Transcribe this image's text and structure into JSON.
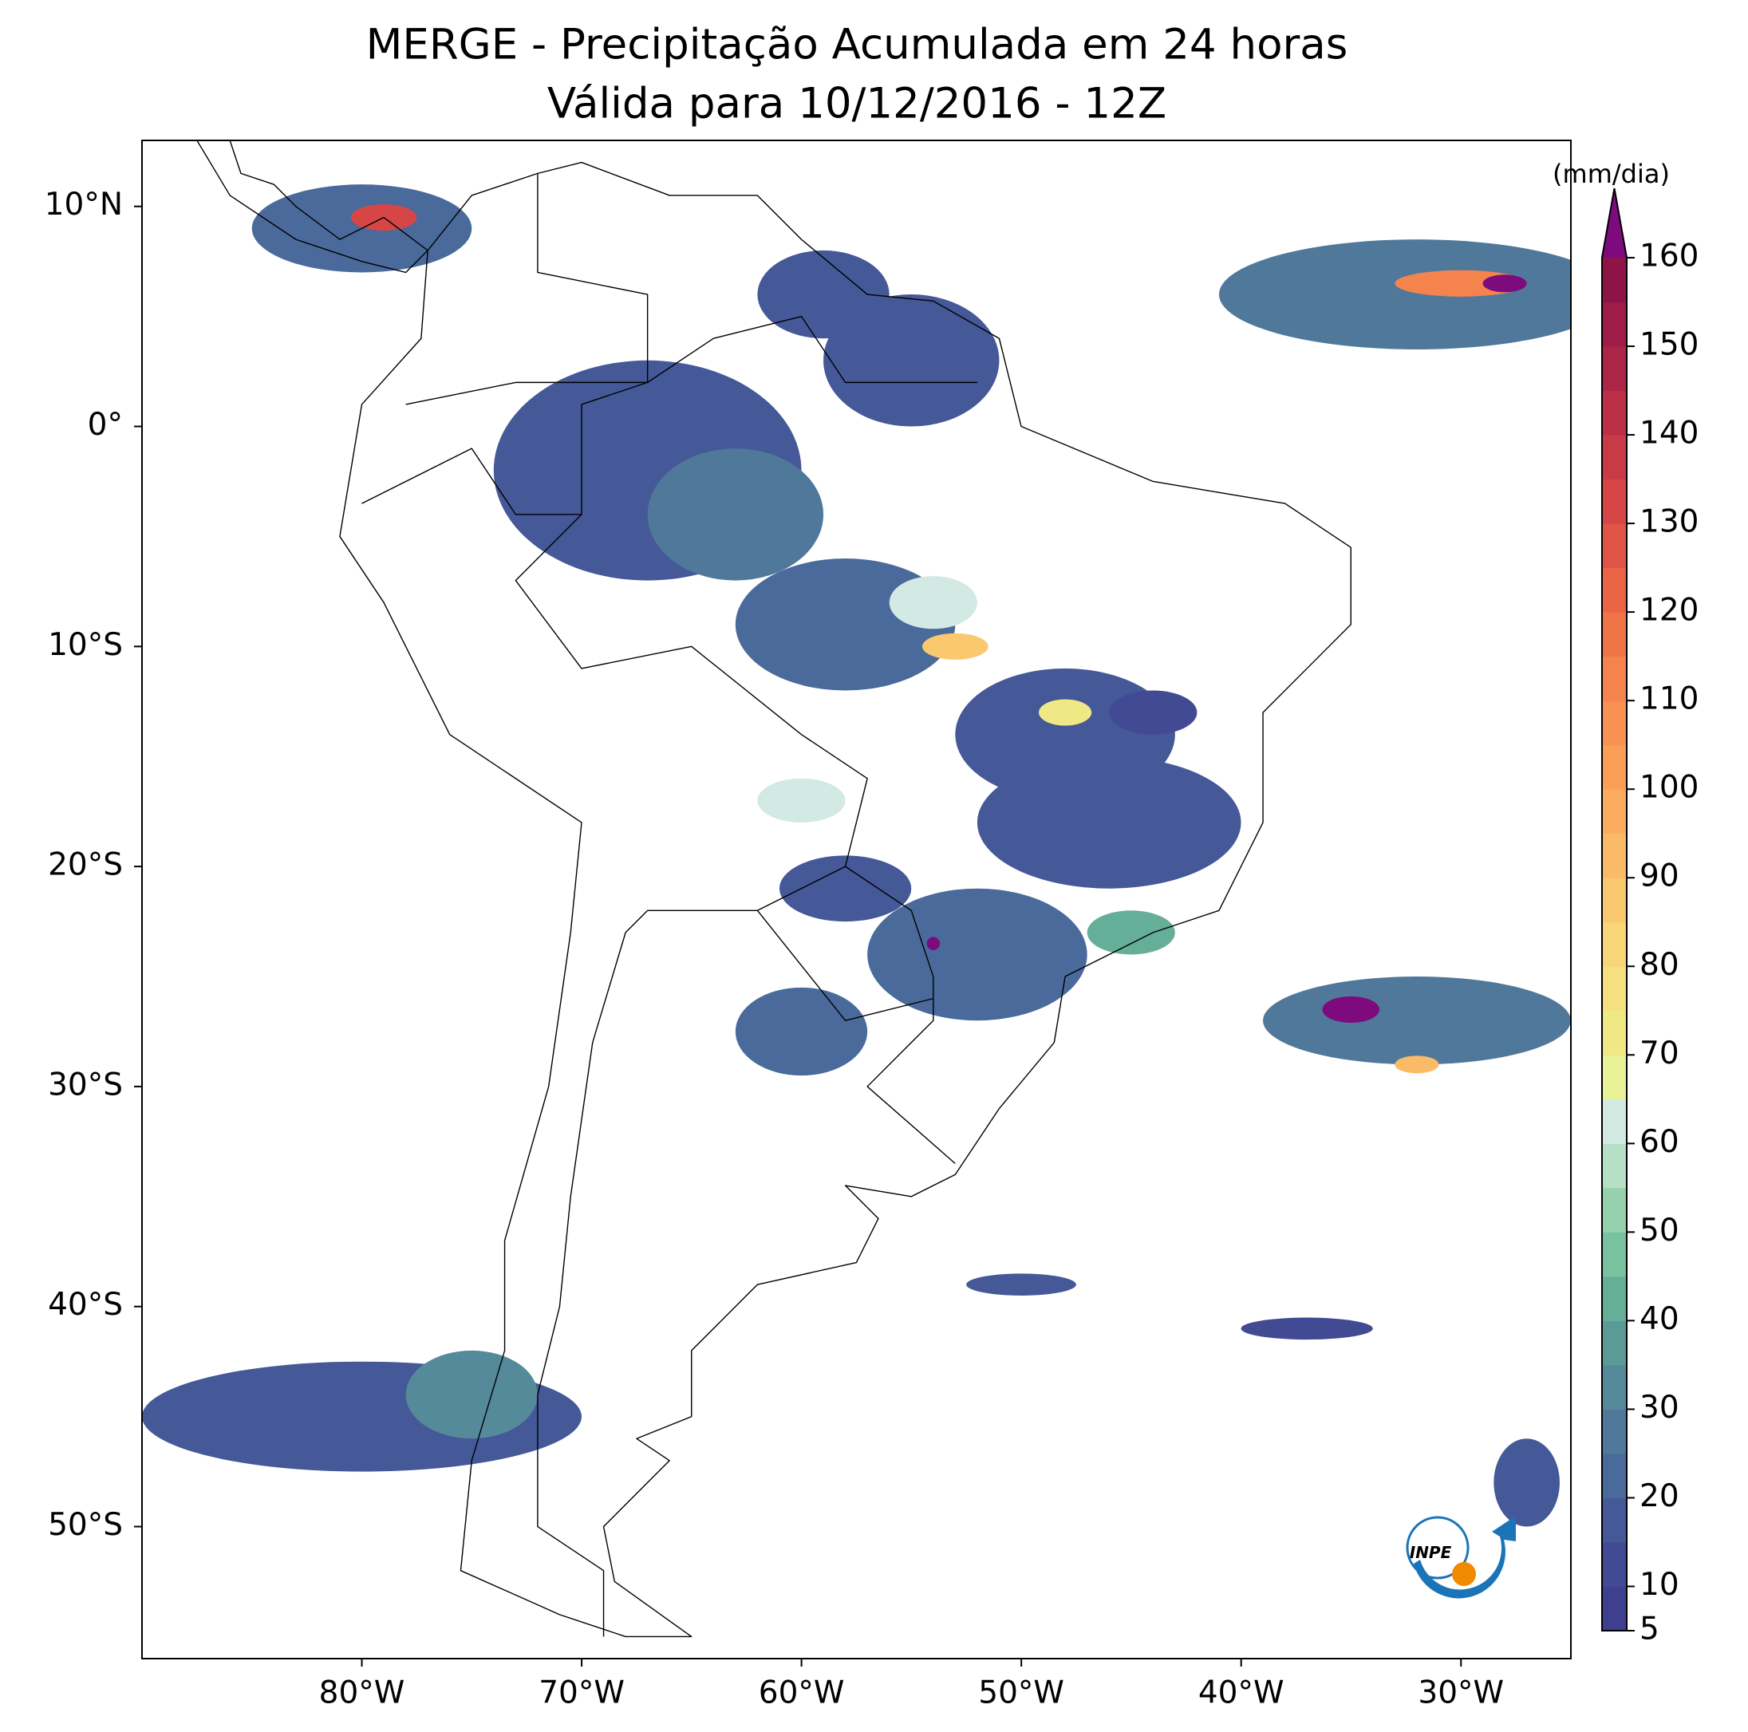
{
  "chart_data": {
    "type": "map",
    "title": [
      "MERGE - Precipitação Acumulada em 24 horas",
      "Válida para 10/12/2016 - 12Z"
    ],
    "xlim": [
      -90,
      -25
    ],
    "ylim": [
      -56,
      13
    ],
    "xticks": [
      {
        "value": -80,
        "label": "80°W"
      },
      {
        "value": -70,
        "label": "70°W"
      },
      {
        "value": -60,
        "label": "60°W"
      },
      {
        "value": -50,
        "label": "50°W"
      },
      {
        "value": -40,
        "label": "40°W"
      },
      {
        "value": -30,
        "label": "30°W"
      }
    ],
    "yticks": [
      {
        "value": 10,
        "label": "10°N"
      },
      {
        "value": 0,
        "label": "0°"
      },
      {
        "value": -10,
        "label": "10°S"
      },
      {
        "value": -20,
        "label": "20°S"
      },
      {
        "value": -30,
        "label": "30°S"
      },
      {
        "value": -40,
        "label": "40°S"
      },
      {
        "value": -50,
        "label": "50°S"
      }
    ],
    "colorbar": {
      "label": "(mm/dia)",
      "levels": [
        5,
        10,
        15,
        20,
        25,
        30,
        35,
        40,
        45,
        50,
        55,
        60,
        65,
        70,
        75,
        80,
        85,
        90,
        95,
        100,
        105,
        110,
        115,
        120,
        125,
        130,
        135,
        140,
        145,
        150,
        155,
        160
      ],
      "ticks": [
        5,
        10,
        20,
        30,
        40,
        50,
        60,
        70,
        80,
        90,
        100,
        110,
        120,
        130,
        140,
        150,
        160
      ],
      "colors": [
        "#3f3f8f",
        "#424a93",
        "#455897",
        "#4a6a9b",
        "#50789b",
        "#548a9a",
        "#5a9b98",
        "#65ae97",
        "#78c29f",
        "#96d1ae",
        "#b6dfc6",
        "#d3e9e3",
        "#e8f297",
        "#f0e884",
        "#f5df7e",
        "#f8d576",
        "#fac86e",
        "#fbba66",
        "#fcac5f",
        "#fb9f57",
        "#f89152",
        "#f4834d",
        "#ef7448",
        "#e96545",
        "#e05545",
        "#d64646",
        "#c93a47",
        "#bb2f47",
        "#ab2546",
        "#9d1c48",
        "#8e1448"
      ],
      "extend_color": "#7d0b7d"
    },
    "rain_cells": [
      {
        "lon": -67,
        "lat": -2,
        "rx": 7,
        "ry": 5,
        "value": 15
      },
      {
        "lon": -63,
        "lat": -4,
        "rx": 4,
        "ry": 3,
        "value": 25
      },
      {
        "lon": -58,
        "lat": -9,
        "rx": 5,
        "ry": 3,
        "value": 20
      },
      {
        "lon": -54,
        "lat": -8,
        "rx": 2,
        "ry": 1.2,
        "value": 60
      },
      {
        "lon": -53,
        "lat": -10,
        "rx": 1.5,
        "ry": 0.6,
        "value": 85
      },
      {
        "lon": -48,
        "lat": -14,
        "rx": 5,
        "ry": 3,
        "value": 15
      },
      {
        "lon": -48,
        "lat": -13,
        "rx": 1.2,
        "ry": 0.6,
        "value": 70
      },
      {
        "lon": -46,
        "lat": -18,
        "rx": 6,
        "ry": 3,
        "value": 18
      },
      {
        "lon": -52,
        "lat": -24,
        "rx": 5,
        "ry": 3,
        "value": 20
      },
      {
        "lon": -58,
        "lat": -21,
        "rx": 3,
        "ry": 1.5,
        "value": 15
      },
      {
        "lon": -54,
        "lat": -23.5,
        "rx": 0.3,
        "ry": 0.3,
        "value": 160
      },
      {
        "lon": -60,
        "lat": -17,
        "rx": 2,
        "ry": 1,
        "value": 60
      },
      {
        "lon": -60,
        "lat": -27.5,
        "rx": 3,
        "ry": 2,
        "value": 20
      },
      {
        "lon": -80,
        "lat": 9,
        "rx": 5,
        "ry": 2,
        "value": 20
      },
      {
        "lon": -79,
        "lat": 9.5,
        "rx": 1.5,
        "ry": 0.6,
        "value": 130
      },
      {
        "lon": -55,
        "lat": 3,
        "rx": 4,
        "ry": 3,
        "value": 15
      },
      {
        "lon": -59,
        "lat": 6,
        "rx": 3,
        "ry": 2,
        "value": 15
      },
      {
        "lon": -32,
        "lat": 6,
        "rx": 9,
        "ry": 2.5,
        "value": 25
      },
      {
        "lon": -30,
        "lat": 6.5,
        "rx": 3,
        "ry": 0.6,
        "value": 110
      },
      {
        "lon": -28,
        "lat": 6.5,
        "rx": 1,
        "ry": 0.4,
        "value": 160
      },
      {
        "lon": -32,
        "lat": -27,
        "rx": 7,
        "ry": 2,
        "value": 25
      },
      {
        "lon": -35,
        "lat": -26.5,
        "rx": 1.3,
        "ry": 0.6,
        "value": 160
      },
      {
        "lon": -32,
        "lat": -29,
        "rx": 1,
        "ry": 0.4,
        "value": 90
      },
      {
        "lon": -80,
        "lat": -45,
        "rx": 10,
        "ry": 2.5,
        "value": 15
      },
      {
        "lon": -75,
        "lat": -44,
        "rx": 3,
        "ry": 2,
        "value": 30
      },
      {
        "lon": -50,
        "lat": -39,
        "rx": 2.5,
        "ry": 0.5,
        "value": 15
      },
      {
        "lon": -37,
        "lat": -41,
        "rx": 3,
        "ry": 0.5,
        "value": 10
      },
      {
        "lon": -45,
        "lat": -23,
        "rx": 2,
        "ry": 1,
        "value": 40
      },
      {
        "lon": -44,
        "lat": -13,
        "rx": 2,
        "ry": 1,
        "value": 10
      },
      {
        "lon": -27,
        "lat": -48,
        "rx": 1.5,
        "ry": 2,
        "value": 15
      }
    ],
    "logo": "INPE"
  }
}
